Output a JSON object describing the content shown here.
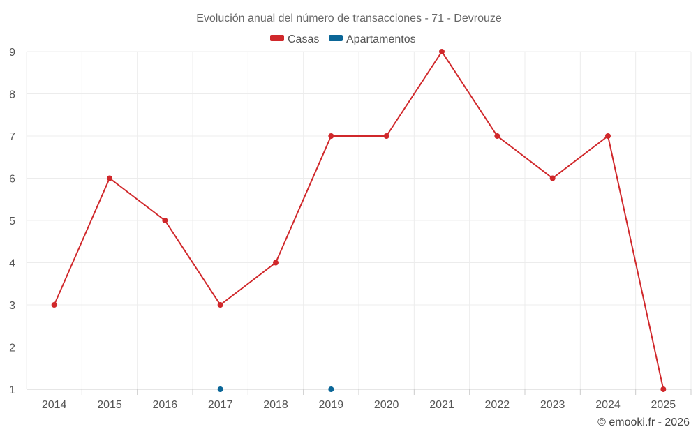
{
  "chart_data": {
    "type": "line",
    "title": "Evolución anual del número de transacciones - 71 - Devrouze",
    "categories": [
      "2014",
      "2015",
      "2016",
      "2017",
      "2018",
      "2019",
      "2020",
      "2021",
      "2022",
      "2023",
      "2024",
      "2025"
    ],
    "series": [
      {
        "name": "Casas",
        "color": "#d0282b",
        "mode": "line",
        "values": [
          3,
          6,
          5,
          3,
          4,
          7,
          7,
          9,
          7,
          6,
          7,
          1
        ]
      },
      {
        "name": "Apartamentos",
        "color": "#0b6697",
        "mode": "points",
        "values": [
          null,
          null,
          null,
          1,
          null,
          1,
          null,
          null,
          null,
          null,
          null,
          null
        ]
      }
    ],
    "ylim": [
      1,
      9
    ],
    "yticks": [
      1,
      2,
      3,
      4,
      5,
      6,
      7,
      8,
      9
    ],
    "grid": true,
    "legend_position": "top-center"
  },
  "credit": "© emooki.fr - 2026"
}
